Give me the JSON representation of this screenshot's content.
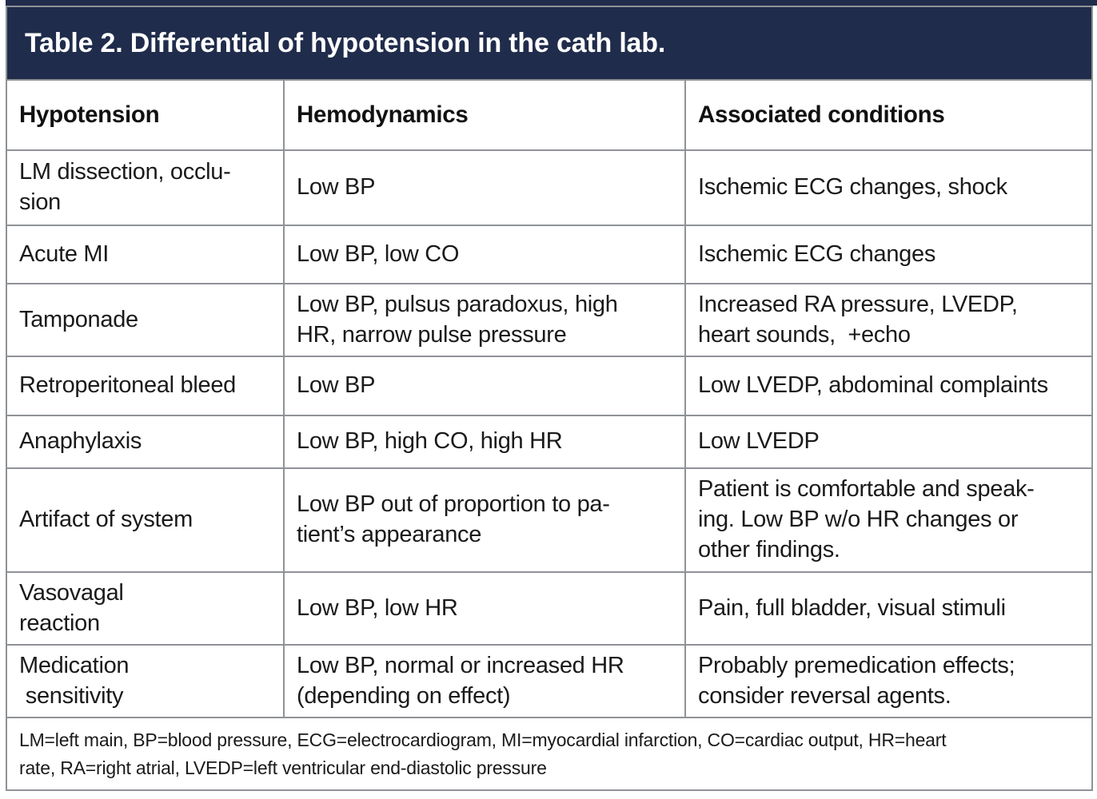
{
  "table": {
    "title": "Table 2. Differential of hypotension in the cath lab.",
    "columns": [
      "Hypotension",
      "Hemodynamics",
      "Associated conditions"
    ],
    "rows": [
      {
        "cells": [
          "LM dissection, occlu-\nsion",
          "Low BP",
          "Ischemic ECG changes, shock"
        ]
      },
      {
        "cells": [
          "Acute MI",
          "Low BP, low CO",
          "Ischemic ECG changes"
        ]
      },
      {
        "cells": [
          "Tamponade",
          "Low BP, pulsus paradoxus, high\nHR, narrow pulse pressure",
          "Increased RA pressure, LVEDP,\nheart sounds,  +echo"
        ]
      },
      {
        "cells": [
          "Retroperitoneal bleed",
          "Low BP",
          "Low LVEDP, abdominal complaints"
        ]
      },
      {
        "cells": [
          "Anaphylaxis",
          "Low BP, high CO, high HR",
          "Low LVEDP"
        ]
      },
      {
        "cells": [
          "Artifact of system",
          "Low BP out of proportion to pa-\ntient’s appearance",
          "Patient is comfortable and speak-\ning. Low BP w/o HR changes or\nother findings."
        ]
      },
      {
        "cells": [
          "Vasovagal\nreaction",
          "Low BP, low HR",
          "Pain, full bladder, visual stimuli"
        ]
      },
      {
        "cells": [
          "Medication\n sensitivity",
          "Low BP, normal or increased HR\n(depending on effect)",
          "Probably premedication effects;\nconsider reversal agents."
        ]
      }
    ],
    "footnote": "LM=left main, BP=blood pressure, ECG=electrocardiogram, MI=myocardial infarction, CO=cardiac output, HR=heart\nrate, RA=right atrial, LVEDP=left ventricular end-diastolic pressure"
  },
  "colors": {
    "banner_bg": "#202c4b",
    "banner_text": "#ffffff",
    "grid_border": "#8f9296",
    "body_text": "#1a1a1a"
  }
}
